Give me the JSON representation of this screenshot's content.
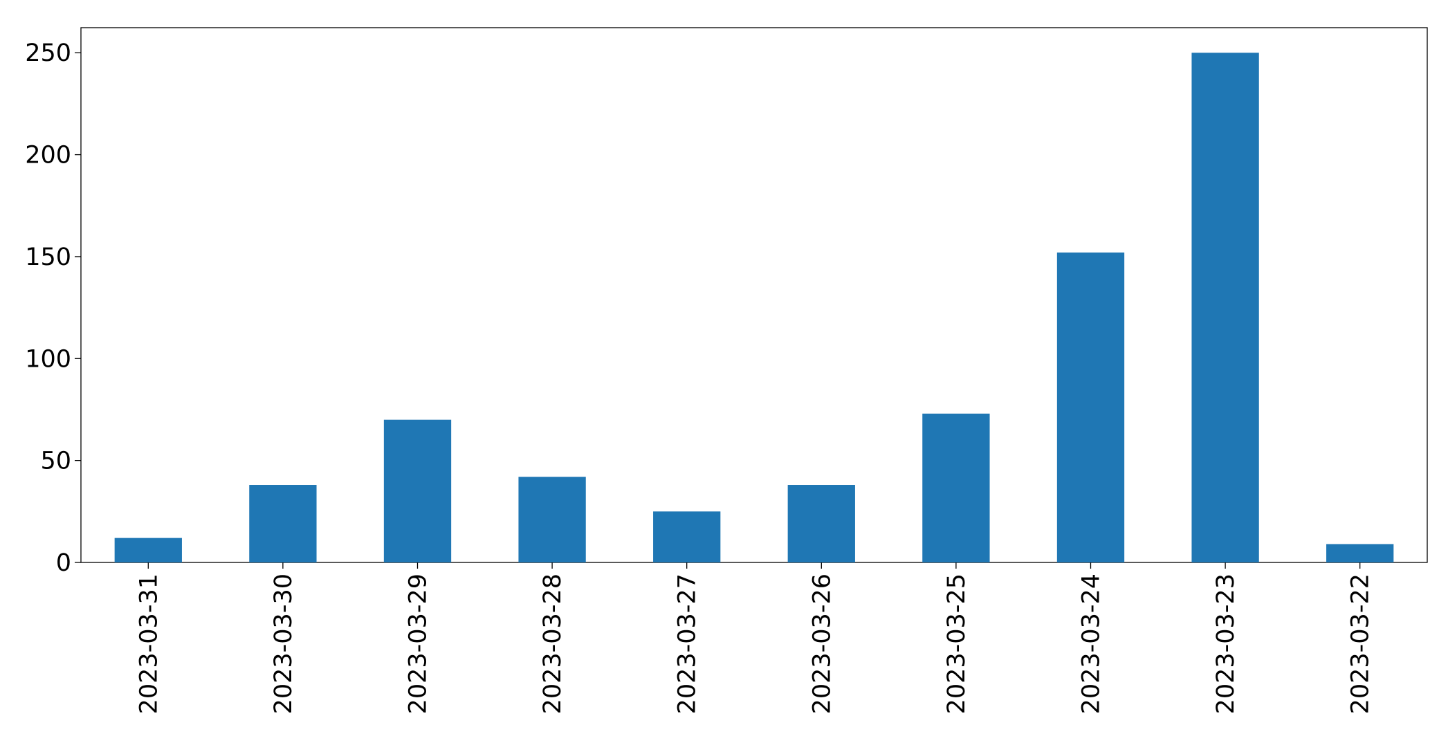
{
  "chart_data": {
    "type": "bar",
    "categories": [
      "2023-03-31",
      "2023-03-30",
      "2023-03-29",
      "2023-03-28",
      "2023-03-27",
      "2023-03-26",
      "2023-03-25",
      "2023-03-24",
      "2023-03-23",
      "2023-03-22"
    ],
    "values": [
      12,
      38,
      70,
      42,
      25,
      38,
      73,
      152,
      250,
      9
    ],
    "color": "#1f77b4",
    "ylim": [
      0,
      262.3
    ],
    "yticks": [
      0,
      50,
      100,
      150,
      200,
      250
    ],
    "grid": false
  }
}
